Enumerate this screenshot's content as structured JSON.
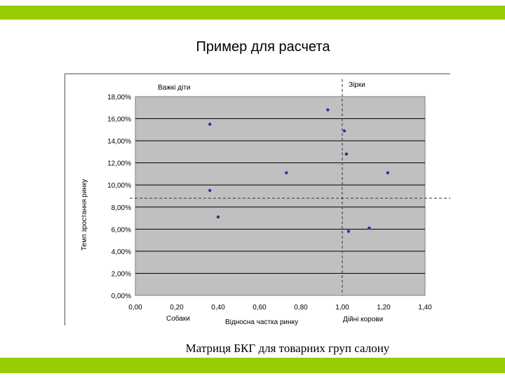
{
  "slide": {
    "title": "Пример для расчета",
    "caption": "Матриця БКГ для товарних груп салону"
  },
  "colors": {
    "accent_bar": "#99cc00",
    "plot_bg": "#c0c0c0",
    "point": "#1f3a93"
  },
  "chart_data": {
    "type": "scatter",
    "title": "",
    "xlabel": "Відносна частка ринку",
    "ylabel": "Темп зростання ринку",
    "xlim": [
      0,
      1.4
    ],
    "ylim": [
      0,
      0.18
    ],
    "x_ticks": [
      "0,00",
      "0,20",
      "0,40",
      "0,60",
      "0,80",
      "1,00",
      "1,20",
      "1,40"
    ],
    "y_ticks": [
      "0,00%",
      "2,00%",
      "4,00%",
      "6,00%",
      "8,00%",
      "10,00%",
      "12,00%",
      "14,00%",
      "16,00%",
      "18,00%"
    ],
    "grid": "horizontal",
    "legend": "none",
    "quadrant_lines": {
      "x": 1.0,
      "y": 0.088
    },
    "quadrant_labels": {
      "top_left": "Важкі діти",
      "top_right": "Зірки",
      "bottom_left": "Собаки",
      "bottom_right": "Дійні корови"
    },
    "series": [
      {
        "points": [
          {
            "x": 0.36,
            "y": 0.155
          },
          {
            "x": 0.36,
            "y": 0.095
          },
          {
            "x": 0.4,
            "y": 0.071
          },
          {
            "x": 0.73,
            "y": 0.111
          },
          {
            "x": 0.93,
            "y": 0.168
          },
          {
            "x": 1.01,
            "y": 0.149
          },
          {
            "x": 1.02,
            "y": 0.128
          },
          {
            "x": 1.03,
            "y": 0.058
          },
          {
            "x": 1.13,
            "y": 0.061
          },
          {
            "x": 1.22,
            "y": 0.111
          }
        ]
      }
    ]
  }
}
